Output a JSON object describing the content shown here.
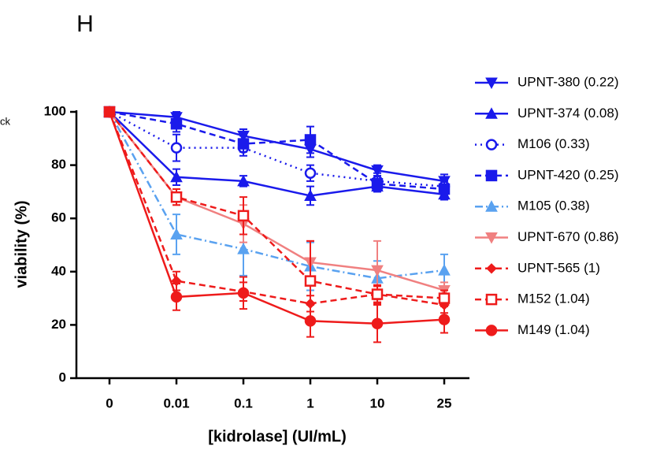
{
  "chart_data": {
    "type": "line",
    "title": "H",
    "annotation": "ck",
    "x_label": "[kidrolase] (UI/mL)",
    "y_label": "viability (%)",
    "categories": [
      "0",
      "0.01",
      "0.1",
      "1",
      "10",
      "25"
    ],
    "ylim": [
      0,
      100
    ],
    "yticks": [
      0,
      20,
      40,
      60,
      80,
      100
    ],
    "series": [
      {
        "name": "UPNT-380 (0.22)",
        "color": "#1a1aeb",
        "dash": "solid",
        "marker": "triangle-down",
        "values": [
          100,
          98,
          91,
          86,
          78,
          74
        ],
        "errors": [
          0,
          2,
          2.5,
          3,
          2,
          2.5
        ]
      },
      {
        "name": "UPNT-374 (0.08)",
        "color": "#1a1aeb",
        "dash": "solid",
        "marker": "triangle-up",
        "values": [
          100,
          75.5,
          74,
          68.5,
          72,
          69
        ],
        "errors": [
          0,
          3,
          2,
          3.5,
          2,
          2
        ]
      },
      {
        "name": "M106 (0.33)",
        "color": "#1a1aeb",
        "dash": "dotted",
        "marker": "circle-open",
        "values": [
          100,
          86.5,
          86.5,
          77,
          74,
          72
        ],
        "errors": [
          0,
          5,
          3,
          3,
          3,
          3
        ]
      },
      {
        "name": "UPNT-420 (0.25)",
        "color": "#1a1aeb",
        "dash": "dashed",
        "marker": "square",
        "values": [
          100,
          95.5,
          88,
          89.5,
          73,
          71
        ],
        "errors": [
          0,
          3,
          3,
          5,
          3,
          3
        ]
      },
      {
        "name": "M105 (0.38)",
        "color": "#5aa2f0",
        "dash": "dashdot",
        "marker": "triangle-up",
        "values": [
          100,
          54,
          48.5,
          42,
          37.5,
          40.5
        ],
        "errors": [
          0,
          7.5,
          10,
          9,
          6.5,
          6
        ]
      },
      {
        "name": "UPNT-670 (0.86)",
        "color": "#f08080",
        "dash": "solid",
        "marker": "triangle-down",
        "values": [
          100,
          68,
          58,
          43.5,
          40.5,
          33
        ],
        "errors": [
          0,
          3,
          7,
          8,
          11,
          3
        ]
      },
      {
        "name": "UPNT-565 (1)",
        "color": "#ee1b1b",
        "dash": "dashed",
        "marker": "diamond",
        "values": [
          100,
          36.5,
          32.5,
          28,
          31.5,
          27.5
        ],
        "errors": [
          0,
          3.5,
          3.5,
          3,
          3.5,
          3
        ]
      },
      {
        "name": "M152 (1.04)",
        "color": "#ee1b1b",
        "dash": "dashed",
        "marker": "square-open",
        "values": [
          100,
          68,
          61,
          36.5,
          31.5,
          30
        ],
        "errors": [
          0,
          3,
          7,
          15,
          3,
          3
        ]
      },
      {
        "name": "M149 (1.04)",
        "color": "#ee1b1b",
        "dash": "solid",
        "marker": "circle",
        "values": [
          100,
          30.5,
          32,
          21.5,
          20.5,
          22
        ],
        "errors": [
          0,
          5,
          6,
          6,
          7,
          5
        ]
      }
    ]
  }
}
